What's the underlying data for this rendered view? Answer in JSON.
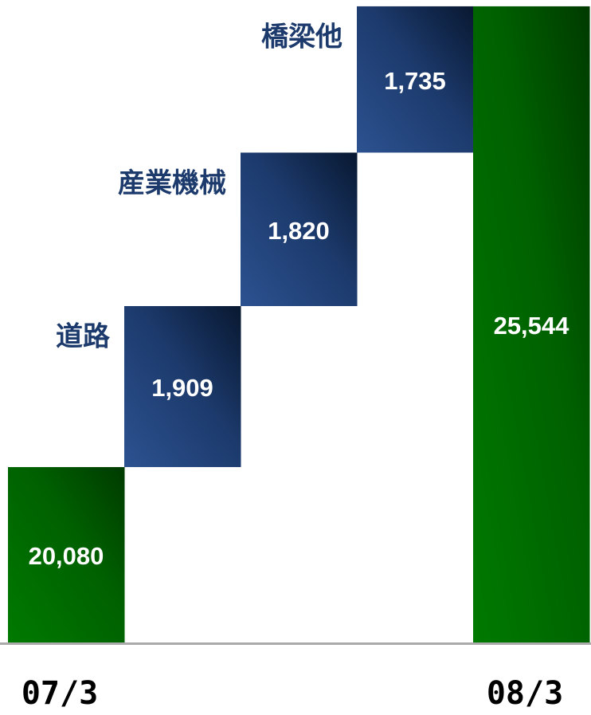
{
  "chart_data": {
    "type": "waterfall",
    "categories": [
      "07/3",
      "道路",
      "産業機械",
      "橋梁他",
      "08/3"
    ],
    "values": [
      20080,
      1909,
      1820,
      1735,
      25544
    ],
    "value_labels": [
      "20,080",
      "1,909",
      "1,820",
      "1,735",
      "25,544"
    ],
    "totals": [
      true,
      false,
      false,
      false,
      true
    ],
    "total_color": "#005a00",
    "step_color": "#1c3a6c",
    "ylim": [
      18000,
      25600
    ]
  }
}
